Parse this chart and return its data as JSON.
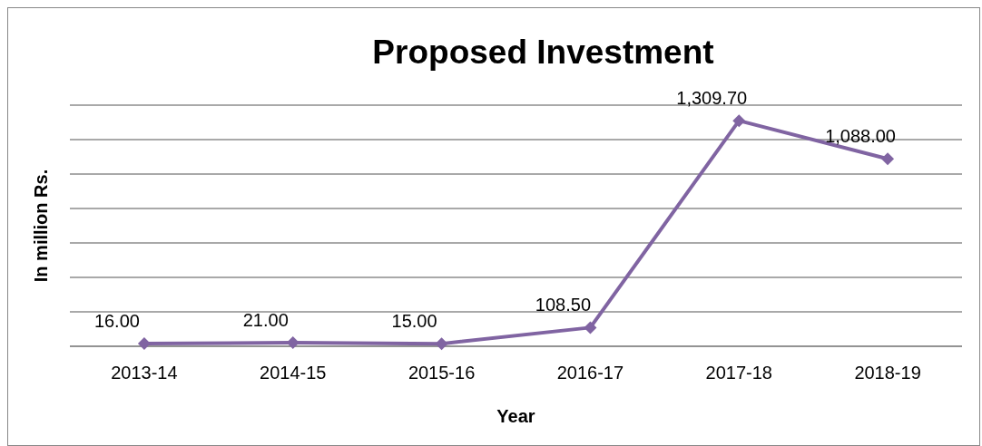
{
  "chart_data": {
    "type": "line",
    "title": "Proposed Investment",
    "xlabel": "Year",
    "ylabel": "In million Rs.",
    "categories": [
      "2013-14",
      "2014-15",
      "2015-16",
      "2016-17",
      "2017-18",
      "2018-19"
    ],
    "series": [
      {
        "color": "#8064a2",
        "values": [
          16,
          21,
          15,
          108.5,
          1309.7,
          1088
        ],
        "value_labels": [
          "16.00",
          "21.00",
          "15.00",
          "108.50",
          "1,309.70",
          "1,088.00"
        ]
      }
    ],
    "ylim": [
      0,
      1400
    ],
    "yticks": [
      {
        "value": 0,
        "label": null
      },
      {
        "value": 200,
        "label": null
      },
      {
        "value": 400,
        "label": null
      },
      {
        "value": 600,
        "label": null
      },
      {
        "value": 800,
        "label": null
      },
      {
        "value": 1000,
        "label": null
      },
      {
        "value": 1200,
        "label": null
      },
      {
        "value": 1400,
        "label": null
      }
    ],
    "tick_labels": "x",
    "grid": "y",
    "marker": "diamond",
    "line_style": "solid"
  }
}
